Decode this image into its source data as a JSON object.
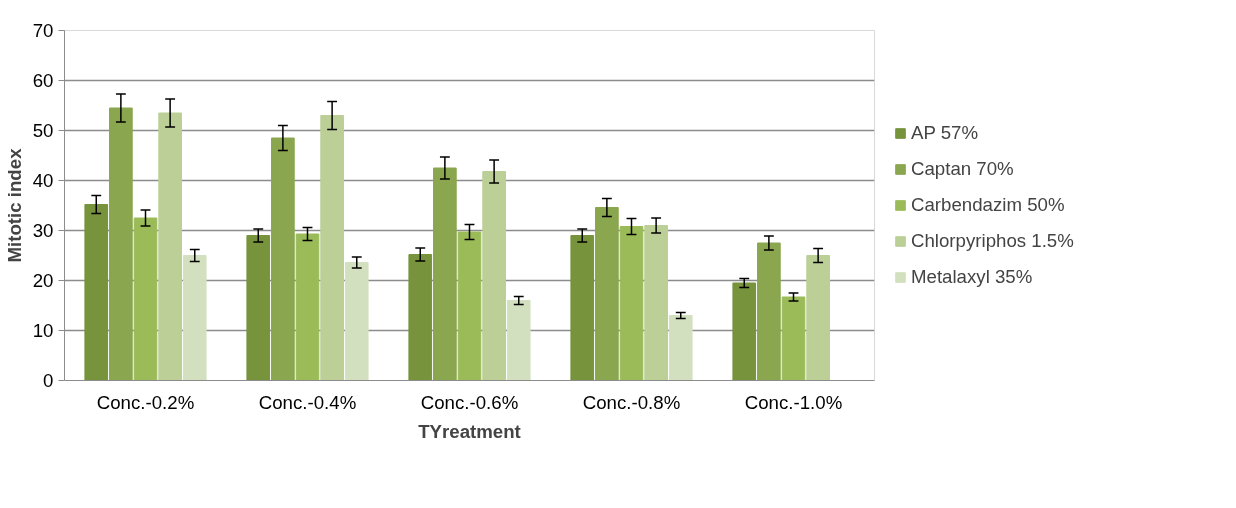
{
  "chart_data": {
    "type": "bar",
    "xlabel": "TYreatment",
    "ylabel": "Mitotic index",
    "categories": [
      "Conc.-0.2%",
      "Conc.-0.4%",
      "Conc.-0.6%",
      "Conc.-0.8%",
      "Conc.-1.0%"
    ],
    "series": [
      {
        "name": "AP 57%",
        "color": "#77933c",
        "values": [
          35.2,
          29,
          25.2,
          29,
          19.5
        ],
        "errors": [
          1.8,
          1.3,
          1.3,
          1.3,
          0.9
        ]
      },
      {
        "name": "Captan 70%",
        "color": "#8aa64e",
        "values": [
          54.5,
          48.5,
          42.5,
          34.6,
          27.5
        ],
        "errors": [
          2.8,
          2.5,
          2.2,
          1.8,
          1.4
        ]
      },
      {
        "name": "Carbendazim 50%",
        "color": "#9bbb59",
        "values": [
          32.5,
          29.3,
          29.7,
          30.8,
          16.7
        ],
        "errors": [
          1.6,
          1.3,
          1.5,
          1.6,
          0.8
        ]
      },
      {
        "name": "Chlorpyriphos 1.5%",
        "color": "#bbcf96",
        "values": [
          53.5,
          53,
          41.8,
          31,
          25
        ],
        "errors": [
          2.8,
          2.8,
          2.3,
          1.5,
          1.4
        ]
      },
      {
        "name": "Metalaxyl 35%",
        "color": "#d3e0bf",
        "values": [
          25,
          23.6,
          16,
          13,
          0
        ],
        "errors": [
          1.2,
          1.1,
          0.8,
          0.6,
          null
        ]
      }
    ],
    "ylim": [
      0,
      70
    ],
    "yticks": [
      0,
      10,
      20,
      30,
      40,
      50,
      60,
      70
    ],
    "grid": "y",
    "legend": "right"
  }
}
